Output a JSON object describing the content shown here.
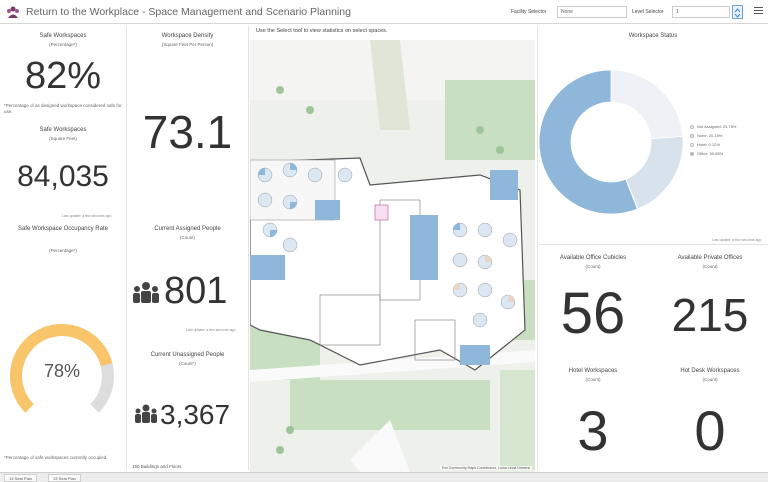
{
  "header": {
    "title": "Return to the Workplace - Space Management and Scenario Planning",
    "facility_label": "Facility Selector",
    "facility_value": "None",
    "level_label": "Level Selector",
    "level_value": "1"
  },
  "left": {
    "safe_pct": {
      "label": "Safe Workspaces",
      "sub": "(Percentage*)",
      "value": "82%",
      "caption": "*Percentage of as designed workspace considered safe for use."
    },
    "safe_sqft": {
      "label": "Safe Workspaces",
      "sub": "(Square Feet)",
      "value": "84,035",
      "updated": "Last update: a few seconds ago"
    },
    "occupancy": {
      "label": "Safe Workspace Occupancy Rate",
      "sub": "(Percentage*)",
      "value": "78%",
      "fraction": 0.78,
      "caption": "*Percentage of safe workspaces currently occupied."
    }
  },
  "mid": {
    "density": {
      "label": "Workspace Density",
      "sub": "(Square Feet Per Person)",
      "value": "73.1"
    },
    "assigned": {
      "label": "Current Assigned People",
      "sub": "(Count)",
      "value": "801",
      "updated": "Last update: a few seconds ago"
    },
    "unassigned": {
      "label": "Current Unassigned People",
      "sub": "(Count*)",
      "value": "3,367"
    },
    "count_note": "150 Buildings and Floors"
  },
  "map": {
    "note": "Use the Select tool to view statistics on select spaces.",
    "attribution": "Esri Community Maps Contributors, Loma Linda Universi"
  },
  "right": {
    "status": {
      "title": "Workspace Status",
      "legend": [
        {
          "name": "Not Assigned: 23.75%",
          "value": 23.75,
          "color": "#eef2f6"
        },
        {
          "name": "None: 20.15%",
          "value": 20.15,
          "color": "#d7e2ec"
        },
        {
          "name": "Hotel: 0.12%",
          "value": 0.12,
          "color": "#f7f7f7"
        },
        {
          "name": "Office: 55.98%",
          "value": 55.98,
          "color": "#8fb7da"
        }
      ],
      "updated": "Last update: a few seconds ago"
    },
    "cubicles": {
      "label": "Available Office Cubicles",
      "sub": "(Count)",
      "value": "56"
    },
    "private": {
      "label": "Available Private Offices",
      "sub": "(Count)",
      "value": "215"
    },
    "hotel": {
      "label": "Hotel Workspaces",
      "sub": "(Count)",
      "value": "3"
    },
    "hotdesk": {
      "label": "Hot Desk Workspaces",
      "sub": "(Count)",
      "value": "0"
    }
  },
  "tabs": [
    "13 Seat Plan",
    "13 Seat Plan"
  ],
  "colors": {
    "accent": "#f9c56a",
    "office": "#8fb7da",
    "map_green": "#c9dfc2",
    "map_bg": "#eef0ec"
  },
  "icons": [
    "logo-icon",
    "people-icon",
    "menu-icon",
    "level-stepper-icon"
  ]
}
